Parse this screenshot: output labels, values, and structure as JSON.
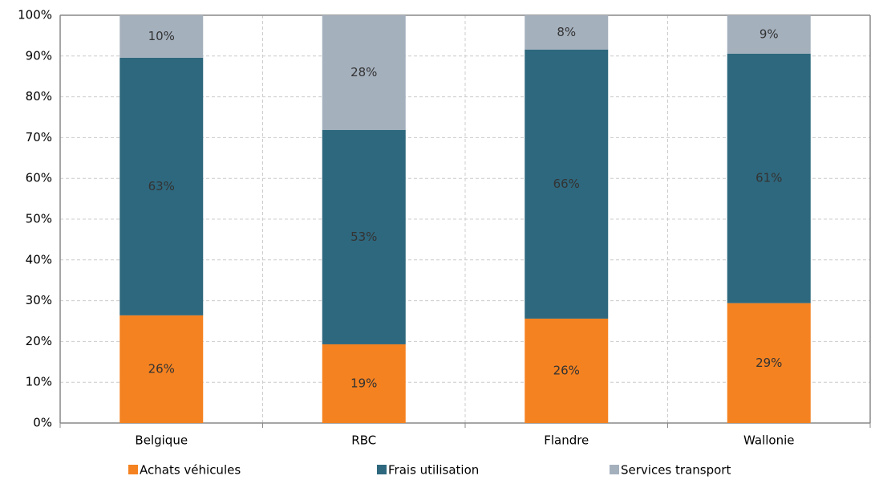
{
  "chart_data": {
    "type": "stacked_bar",
    "categories": [
      "Belgique",
      "RBC",
      "Flandre",
      "Wallonie"
    ],
    "series": [
      {
        "name": "Achats véhicules",
        "color": "#f58220",
        "values": [
          26.4,
          19.3,
          25.6,
          29.4
        ],
        "value_labels": [
          "26%",
          "19%",
          "26%",
          "29%"
        ]
      },
      {
        "name": "Frais utilisation",
        "color": "#2e687e",
        "values": [
          63.2,
          52.6,
          66.0,
          61.2
        ],
        "value_labels": [
          "63%",
          "53%",
          "66%",
          "61%"
        ]
      },
      {
        "name": "Services transport",
        "color": "#a5b0bd",
        "values": [
          10.4,
          28.1,
          8.4,
          9.4
        ],
        "value_labels": [
          "10%",
          "28%",
          "8%",
          "9%"
        ]
      }
    ],
    "ylim": [
      0,
      100
    ],
    "yticks": [
      {
        "value": 0,
        "label": "0%"
      },
      {
        "value": 10,
        "label": "10%"
      },
      {
        "value": 20,
        "label": "20%"
      },
      {
        "value": 30,
        "label": "30%"
      },
      {
        "value": 40,
        "label": "40%"
      },
      {
        "value": 50,
        "label": "50%"
      },
      {
        "value": 60,
        "label": "60%"
      },
      {
        "value": 70,
        "label": "70%"
      },
      {
        "value": 80,
        "label": "80%"
      },
      {
        "value": 90,
        "label": "90%"
      },
      {
        "value": 100,
        "label": "100%"
      }
    ],
    "grid": true,
    "legend": "bottom"
  }
}
